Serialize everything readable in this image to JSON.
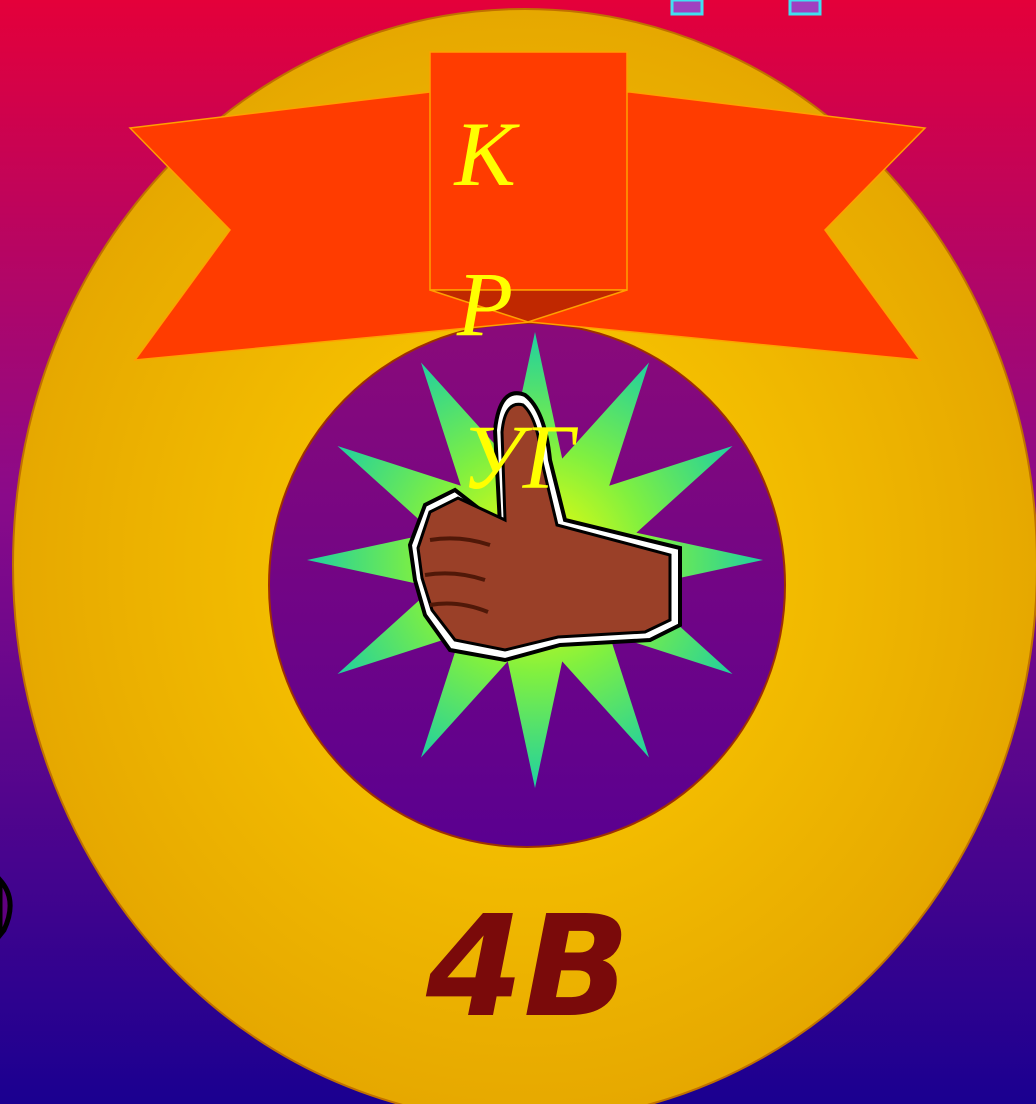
{
  "banner": {
    "letters": [
      "К",
      "Р",
      "УГ"
    ]
  },
  "label": "4В"
}
